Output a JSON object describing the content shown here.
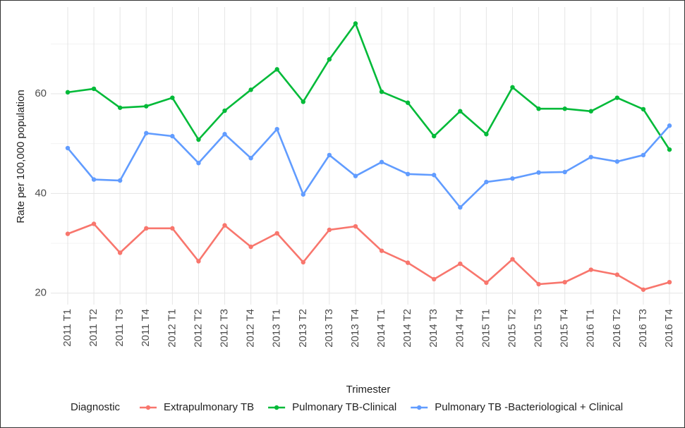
{
  "chart_data": {
    "type": "line",
    "x_label": "Trimester",
    "y_label": "Rate per 100,000 population",
    "legend_title": "Diagnostic",
    "categories": [
      "2011 T1",
      "2011 T2",
      "2011 T3",
      "2011 T4",
      "2012 T1",
      "2012 T2",
      "2012 T3",
      "2012 T4",
      "2013 T1",
      "2013 T2",
      "2013 T3",
      "2013 T4",
      "2014 T1",
      "2014 T2",
      "2014 T3",
      "2014 T4",
      "2015 T1",
      "2015 T2",
      "2015 T3",
      "2015 T4",
      "2016 T1",
      "2016 T2",
      "2016 T3",
      "2016 T4"
    ],
    "series": [
      {
        "name": "Extrapulmonary TB",
        "color": "#f8766d",
        "values": [
          31.9,
          33.9,
          28.1,
          33.0,
          33.0,
          26.4,
          33.6,
          29.3,
          32.0,
          26.2,
          32.7,
          33.4,
          28.5,
          26.1,
          22.8,
          25.9,
          22.1,
          26.8,
          21.8,
          22.2,
          24.7,
          23.7,
          20.7,
          22.2
        ]
      },
      {
        "name": "Pulmonary TB-Clinical",
        "color": "#00ba38",
        "values": [
          60.3,
          61.0,
          57.2,
          57.5,
          59.2,
          50.8,
          56.6,
          60.8,
          64.9,
          58.4,
          66.9,
          74.1,
          60.4,
          58.2,
          51.5,
          56.5,
          51.9,
          61.3,
          57.0,
          57.0,
          56.5,
          59.2,
          56.9,
          48.8
        ]
      },
      {
        "name": "Pulmonary TB -Bacteriological + Clinical",
        "color": "#619cff",
        "values": [
          49.1,
          42.8,
          42.6,
          52.1,
          51.5,
          46.1,
          51.9,
          47.1,
          52.9,
          39.8,
          47.7,
          43.5,
          46.3,
          43.9,
          43.7,
          37.2,
          42.3,
          43.0,
          44.2,
          44.3,
          47.3,
          46.4,
          47.7,
          53.6
        ]
      }
    ],
    "ylim": [
      17.7,
      77.4
    ],
    "yticks": [
      20,
      40,
      60
    ],
    "minor_yticks": [
      30,
      50,
      70
    ],
    "grid": true,
    "legend": "bottom"
  }
}
